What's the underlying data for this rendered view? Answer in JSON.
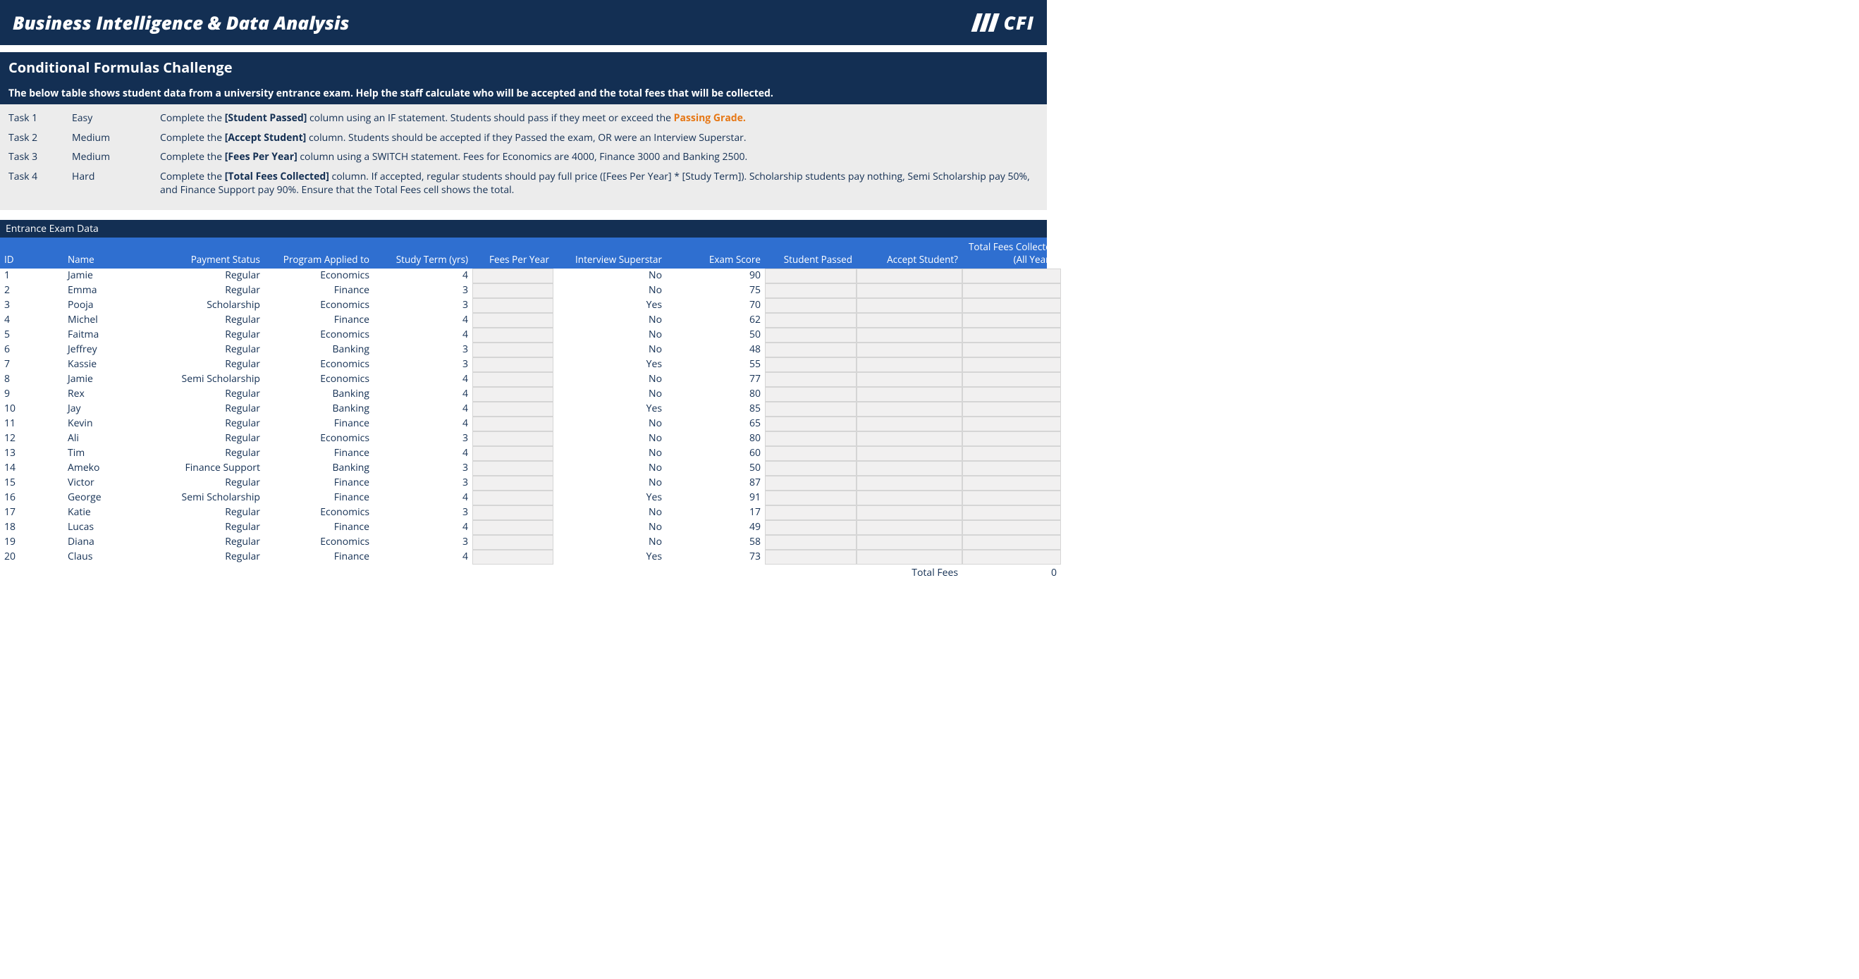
{
  "colors": {
    "dark_navy": "#132f53",
    "blue_header": "#2f6fd0",
    "panel_bg": "#ececec",
    "input_bg": "#f1f0f0",
    "orange": "#e67817"
  },
  "banner": {
    "title": "Business Intelligence & Data Analysis",
    "logo_text": "CFI"
  },
  "section_title": "Conditional Formulas Challenge",
  "tasks_intro": "The below table shows student data from a university entrance exam. Help the staff calculate who will be accepted and the total fees that will be collected.",
  "tasks": [
    {
      "label": "Task 1",
      "level": "Easy",
      "pre": "Complete the ",
      "bold": "[Student Passed]",
      "post": " column using an IF statement. Students should pass if they meet or exceed the ",
      "orange": "Passing Grade.",
      "tail": ""
    },
    {
      "label": "Task 2",
      "level": "Medium",
      "pre": "Complete the ",
      "bold": "[Accept Student]",
      "post": " column. Students should be accepted if they Passed the exam, OR were an Interview Superstar.",
      "orange": "",
      "tail": ""
    },
    {
      "label": "Task 3",
      "level": "Medium",
      "pre": "Complete the ",
      "bold": "[Fees Per Year]",
      "post": " column using a SWITCH statement. Fees for Economics are 4000, Finance 3000 and Banking 2500.",
      "orange": "",
      "tail": ""
    },
    {
      "label": "Task 4",
      "level": "Hard",
      "pre": "Complete the ",
      "bold": "[Total Fees Collected]",
      "post": " column. If accepted, regular students should pay full price ([Fees Per Year] * [Study Term]). Scholarship students pay nothing, Semi Scholarship pay 50%, and Finance Support pay 90%. Ensure that the Total Fees cell shows the total.",
      "orange": "",
      "tail": ""
    }
  ],
  "table_title": "Entrance Exam Data",
  "columns": [
    "ID",
    "Name",
    "Payment Status",
    "Program Applied to",
    "Study Term (yrs)",
    "Fees Per Year",
    "Interview Superstar",
    "Exam Score",
    "Student Passed",
    "Accept Student?",
    "Total Fees Collected (All Years)"
  ],
  "column_align": [
    "l",
    "l",
    "r",
    "r",
    "r",
    "r",
    "r",
    "r",
    "r",
    "r",
    "r"
  ],
  "rows": [
    {
      "id": "1",
      "name": "Jamie",
      "payment": "Regular",
      "program": "Economics",
      "term": "4",
      "superstar": "No",
      "score": "90"
    },
    {
      "id": "2",
      "name": "Emma",
      "payment": "Regular",
      "program": "Finance",
      "term": "3",
      "superstar": "No",
      "score": "75"
    },
    {
      "id": "3",
      "name": "Pooja",
      "payment": "Scholarship",
      "program": "Economics",
      "term": "3",
      "superstar": "Yes",
      "score": "70"
    },
    {
      "id": "4",
      "name": "Michel",
      "payment": "Regular",
      "program": "Finance",
      "term": "4",
      "superstar": "No",
      "score": "62"
    },
    {
      "id": "5",
      "name": "Faitma",
      "payment": "Regular",
      "program": "Economics",
      "term": "4",
      "superstar": "No",
      "score": "50"
    },
    {
      "id": "6",
      "name": "Jeffrey",
      "payment": "Regular",
      "program": "Banking",
      "term": "3",
      "superstar": "No",
      "score": "48"
    },
    {
      "id": "7",
      "name": "Kassie",
      "payment": "Regular",
      "program": "Economics",
      "term": "3",
      "superstar": "Yes",
      "score": "55"
    },
    {
      "id": "8",
      "name": "Jamie",
      "payment": "Semi Scholarship",
      "program": "Economics",
      "term": "4",
      "superstar": "No",
      "score": "77"
    },
    {
      "id": "9",
      "name": "Rex",
      "payment": "Regular",
      "program": "Banking",
      "term": "4",
      "superstar": "No",
      "score": "80"
    },
    {
      "id": "10",
      "name": "Jay",
      "payment": "Regular",
      "program": "Banking",
      "term": "4",
      "superstar": "Yes",
      "score": "85"
    },
    {
      "id": "11",
      "name": "Kevin",
      "payment": "Regular",
      "program": "Finance",
      "term": "4",
      "superstar": "No",
      "score": "65"
    },
    {
      "id": "12",
      "name": "Ali",
      "payment": "Regular",
      "program": "Economics",
      "term": "3",
      "superstar": "No",
      "score": "80"
    },
    {
      "id": "13",
      "name": "Tim",
      "payment": "Regular",
      "program": "Finance",
      "term": "4",
      "superstar": "No",
      "score": "60"
    },
    {
      "id": "14",
      "name": "Ameko",
      "payment": "Finance Support",
      "program": "Banking",
      "term": "3",
      "superstar": "No",
      "score": "50"
    },
    {
      "id": "15",
      "name": "Victor",
      "payment": "Regular",
      "program": "Finance",
      "term": "3",
      "superstar": "No",
      "score": "87"
    },
    {
      "id": "16",
      "name": "George",
      "payment": "Semi Scholarship",
      "program": "Finance",
      "term": "4",
      "superstar": "Yes",
      "score": "91"
    },
    {
      "id": "17",
      "name": "Katie",
      "payment": "Regular",
      "program": "Economics",
      "term": "3",
      "superstar": "No",
      "score": "17"
    },
    {
      "id": "18",
      "name": "Lucas",
      "payment": "Regular",
      "program": "Finance",
      "term": "4",
      "superstar": "No",
      "score": "49"
    },
    {
      "id": "19",
      "name": "Diana",
      "payment": "Regular",
      "program": "Economics",
      "term": "3",
      "superstar": "No",
      "score": "58"
    },
    {
      "id": "20",
      "name": "Claus",
      "payment": "Regular",
      "program": "Finance",
      "term": "4",
      "superstar": "Yes",
      "score": "73"
    }
  ],
  "total_label": "Total Fees",
  "total_value": "0"
}
